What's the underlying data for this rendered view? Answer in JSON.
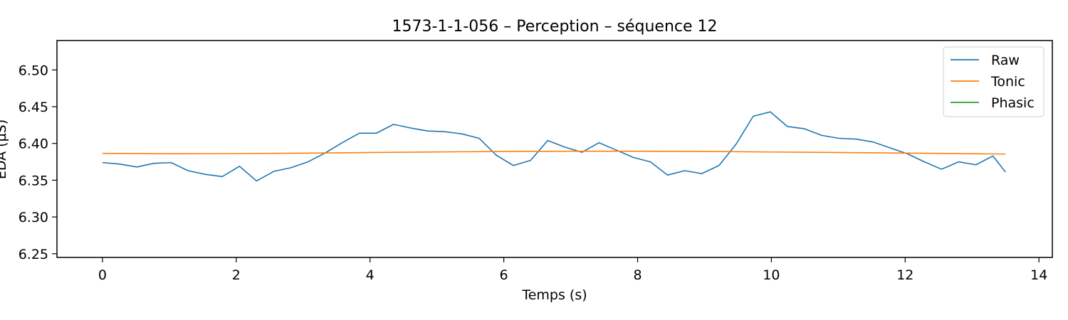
{
  "chart_data": {
    "type": "line",
    "title": "1573-1-1-056 – Perception – séquence 12",
    "xlabel": "Temps (s)",
    "ylabel": "EDA (µS)",
    "xlim": [
      -0.68,
      14.2
    ],
    "ylim": [
      6.245,
      6.54
    ],
    "xticks": [
      0,
      2,
      4,
      6,
      8,
      10,
      12,
      14
    ],
    "yticks": [
      6.25,
      6.3,
      6.35,
      6.4,
      6.45,
      6.5
    ],
    "xtick_labels": [
      "0",
      "2",
      "4",
      "6",
      "8",
      "10",
      "12",
      "14"
    ],
    "ytick_labels": [
      "6.25",
      "6.30",
      "6.35",
      "6.40",
      "6.45",
      "6.50"
    ],
    "grid": false,
    "legend_position": "top-right",
    "legend": [
      "Raw",
      "Tonic",
      "Phasic"
    ],
    "series": [
      {
        "name": "Raw",
        "color": "#1f77b4",
        "x": [
          0.0,
          0.256,
          0.512,
          0.768,
          1.024,
          1.28,
          1.536,
          1.792,
          2.048,
          2.304,
          2.56,
          2.816,
          3.072,
          3.328,
          3.584,
          3.84,
          4.096,
          4.352,
          4.608,
          4.864,
          5.12,
          5.376,
          5.632,
          5.888,
          6.144,
          6.4,
          6.656,
          6.912,
          7.168,
          7.424,
          7.68,
          7.936,
          8.192,
          8.448,
          8.704,
          8.96,
          9.216,
          9.472,
          9.728,
          9.984,
          10.24,
          10.496,
          10.752,
          11.008,
          11.264,
          11.52,
          11.776,
          12.032,
          12.288,
          12.544,
          12.8,
          13.056,
          13.312,
          13.5
        ],
        "y": [
          6.374,
          6.372,
          6.368,
          6.373,
          6.374,
          6.363,
          6.358,
          6.355,
          6.369,
          6.349,
          6.362,
          6.367,
          6.375,
          6.387,
          6.401,
          6.414,
          6.414,
          6.426,
          6.421,
          6.417,
          6.416,
          6.413,
          6.407,
          6.384,
          6.37,
          6.377,
          6.404,
          6.395,
          6.388,
          6.401,
          6.391,
          6.381,
          6.375,
          6.357,
          6.363,
          6.359,
          6.37,
          6.399,
          6.437,
          6.443,
          6.423,
          6.42,
          6.411,
          6.407,
          6.406,
          6.402,
          6.394,
          6.386,
          6.375,
          6.365,
          6.375,
          6.371,
          6.383,
          6.361
        ]
      },
      {
        "name": "Tonic",
        "color": "#ff7f0e",
        "x": [
          0.0,
          1.0,
          2.0,
          3.0,
          4.0,
          5.0,
          6.0,
          7.0,
          8.0,
          9.0,
          10.0,
          11.0,
          12.0,
          13.0,
          13.5
        ],
        "y": [
          6.3865,
          6.386,
          6.3862,
          6.3868,
          6.3877,
          6.3885,
          6.3891,
          6.3894,
          6.3894,
          6.3891,
          6.3884,
          6.3877,
          6.3869,
          6.386,
          6.3856
        ]
      },
      {
        "name": "Phasic",
        "color": "#2ca02c",
        "x": [],
        "y": []
      }
    ]
  }
}
